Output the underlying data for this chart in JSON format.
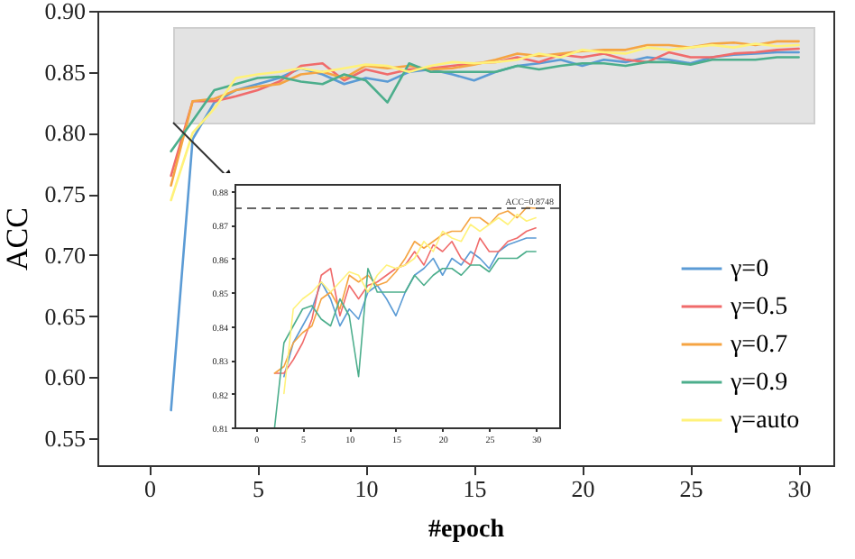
{
  "chart_data": [
    {
      "type": "line",
      "xlabel": "#epoch",
      "ylabel": "ACC",
      "x": [
        1,
        2,
        3,
        4,
        5,
        6,
        7,
        8,
        9,
        10,
        11,
        12,
        13,
        14,
        15,
        16,
        17,
        18,
        19,
        20,
        21,
        22,
        23,
        24,
        25,
        26,
        27,
        28,
        29,
        30
      ],
      "series": [
        {
          "name": "γ=0",
          "color": "#5b9bd5",
          "values": [
            0.573,
            0.795,
            0.825,
            0.835,
            0.84,
            0.845,
            0.853,
            0.848,
            0.84,
            0.845,
            0.842,
            0.85,
            0.852,
            0.848,
            0.843,
            0.85,
            0.855,
            0.857,
            0.86,
            0.855,
            0.86,
            0.858,
            0.862,
            0.86,
            0.857,
            0.862,
            0.864,
            0.865,
            0.866,
            0.866
          ]
        },
        {
          "name": "γ=0.5",
          "color": "#f06b6b",
          "values": [
            0.765,
            0.826,
            0.826,
            0.83,
            0.835,
            0.842,
            0.855,
            0.857,
            0.843,
            0.852,
            0.848,
            0.852,
            0.853,
            0.855,
            0.857,
            0.858,
            0.862,
            0.858,
            0.864,
            0.862,
            0.865,
            0.86,
            0.858,
            0.866,
            0.862,
            0.862,
            0.865,
            0.866,
            0.868,
            0.869
          ]
        },
        {
          "name": "γ=0.7",
          "color": "#f5a442",
          "values": [
            0.757,
            0.826,
            0.828,
            0.835,
            0.838,
            0.84,
            0.848,
            0.85,
            0.845,
            0.855,
            0.853,
            0.855,
            0.852,
            0.853,
            0.856,
            0.86,
            0.865,
            0.863,
            0.865,
            0.867,
            0.868,
            0.868,
            0.872,
            0.872,
            0.87,
            0.873,
            0.874,
            0.872,
            0.875,
            0.875
          ]
        },
        {
          "name": "γ=0.9",
          "color": "#4cae8c",
          "values": [
            0.785,
            0.81,
            0.835,
            0.84,
            0.845,
            0.846,
            0.842,
            0.84,
            0.848,
            0.843,
            0.825,
            0.857,
            0.85,
            0.85,
            0.85,
            0.85,
            0.855,
            0.852,
            0.855,
            0.857,
            0.857,
            0.855,
            0.858,
            0.858,
            0.856,
            0.86,
            0.86,
            0.86,
            0.862,
            0.862
          ]
        },
        {
          "name": "γ=auto",
          "color": "#fff27a",
          "values": [
            0.745,
            0.8,
            0.82,
            0.845,
            0.848,
            0.85,
            0.853,
            0.85,
            0.853,
            0.856,
            0.855,
            0.85,
            0.855,
            0.858,
            0.857,
            0.858,
            0.86,
            0.865,
            0.862,
            0.868,
            0.866,
            0.865,
            0.87,
            0.868,
            0.87,
            0.872,
            0.87,
            0.873,
            0.871,
            0.872
          ]
        }
      ],
      "xlim": [
        -2.4,
        31.6
      ],
      "xticks": [
        0,
        5,
        10,
        15,
        20,
        25,
        30
      ],
      "ylim": [
        0.528,
        0.9
      ],
      "yticks": [
        {
          "value": 0.55,
          "label": "0.55"
        },
        {
          "value": 0.6,
          "label": "0.60"
        },
        {
          "value": 0.65,
          "label": "0.65"
        },
        {
          "value": 0.7,
          "label": "0.70"
        },
        {
          "value": 0.75,
          "label": "0.75"
        },
        {
          "value": 0.8,
          "label": "0.80"
        },
        {
          "value": 0.85,
          "label": "0.85"
        },
        {
          "value": 0.9,
          "label": "0.90"
        }
      ],
      "legend": "bottom right",
      "marker": "none",
      "line_style": "solid",
      "grid": false
    },
    {
      "type": "line",
      "x": [
        2,
        3,
        4,
        5,
        6,
        7,
        8,
        9,
        10,
        11,
        12,
        13,
        14,
        15,
        16,
        17,
        18,
        19,
        20,
        21,
        22,
        23,
        24,
        25,
        26,
        27,
        28,
        29,
        30
      ],
      "series": [
        {
          "color": "#5b9bd5",
          "values": [
            null,
            0.825,
            0.835,
            0.84,
            0.845,
            0.853,
            0.848,
            0.84,
            0.845,
            0.842,
            0.85,
            0.852,
            0.848,
            0.843,
            0.85,
            0.855,
            0.857,
            0.86,
            0.855,
            0.86,
            0.858,
            0.862,
            0.86,
            0.857,
            0.862,
            0.864,
            0.865,
            0.866,
            0.866
          ]
        },
        {
          "color": "#f06b6b",
          "values": [
            0.826,
            0.826,
            0.83,
            0.835,
            0.842,
            0.855,
            0.857,
            0.843,
            0.852,
            0.848,
            0.852,
            0.853,
            0.855,
            0.857,
            0.858,
            0.862,
            0.858,
            0.864,
            0.862,
            0.865,
            0.86,
            0.858,
            0.866,
            0.862,
            0.862,
            0.865,
            0.866,
            0.868,
            0.869
          ]
        },
        {
          "color": "#f5a442",
          "values": [
            0.826,
            0.828,
            0.835,
            0.838,
            0.84,
            0.848,
            0.85,
            0.845,
            0.855,
            0.853,
            0.855,
            0.852,
            0.853,
            0.856,
            0.86,
            0.865,
            0.863,
            0.865,
            0.867,
            0.868,
            0.868,
            0.872,
            0.872,
            0.87,
            0.873,
            0.874,
            0.872,
            0.875,
            0.8748
          ]
        },
        {
          "color": "#4cae8c",
          "values": [
            0.81,
            0.835,
            0.84,
            0.845,
            0.846,
            0.842,
            0.84,
            0.848,
            0.843,
            0.825,
            0.857,
            0.85,
            0.85,
            0.85,
            0.85,
            0.855,
            0.852,
            0.855,
            0.857,
            0.857,
            0.855,
            0.858,
            0.858,
            0.856,
            0.86,
            0.86,
            0.86,
            0.862,
            0.862
          ]
        },
        {
          "color": "#fff27a",
          "values": [
            null,
            0.82,
            0.845,
            0.848,
            0.85,
            0.853,
            0.85,
            0.853,
            0.856,
            0.855,
            0.85,
            0.855,
            0.858,
            0.857,
            0.858,
            0.86,
            0.865,
            0.862,
            0.868,
            0.866,
            0.865,
            0.87,
            0.868,
            0.87,
            0.872,
            0.87,
            0.873,
            0.871,
            0.872
          ]
        }
      ],
      "xlim": [
        -2.3,
        32.5
      ],
      "xticks": [
        0,
        5,
        10,
        15,
        20,
        25,
        30
      ],
      "ylim": [
        0.81,
        0.882
      ],
      "yticks": [
        0.81,
        0.82,
        0.83,
        0.84,
        0.85,
        0.86,
        0.87,
        0.88
      ],
      "ref_lines": [
        {
          "axis": "y",
          "value": 0.8748,
          "label": "ACC=0.8748",
          "color": "#333333",
          "line_style": "dashed"
        }
      ],
      "marker": "none",
      "line_style": "solid",
      "grid": false
    }
  ]
}
